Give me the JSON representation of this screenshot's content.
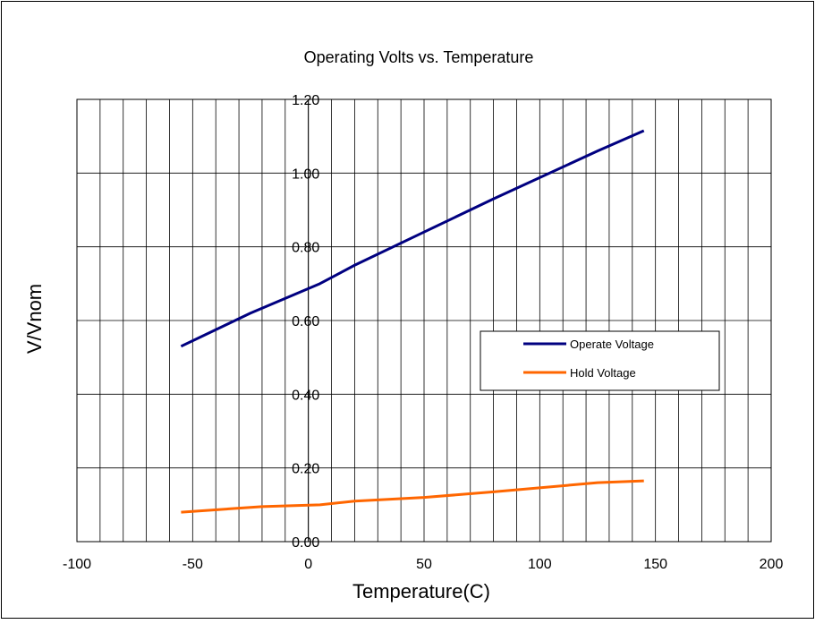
{
  "chart_data": {
    "type": "line",
    "title": "Operating Volts vs. Temperature",
    "xlabel": "Temperature(C)",
    "ylabel": "V/Vnom",
    "xlim": [
      -100,
      200
    ],
    "ylim": [
      0,
      1.2
    ],
    "x_ticks": [
      "-100",
      "-50",
      "0",
      "50",
      "100",
      "150",
      "200"
    ],
    "y_ticks": [
      "0.00",
      "0.20",
      "0.40",
      "0.60",
      "0.80",
      "1.00",
      "1.20"
    ],
    "grid": true,
    "legend_position": "right-center",
    "series": [
      {
        "name": "Operate Voltage",
        "color": "#000080",
        "x": [
          -55,
          -25,
          5,
          20,
          50,
          80,
          125,
          145
        ],
        "y": [
          0.53,
          0.62,
          0.7,
          0.75,
          0.84,
          0.93,
          1.06,
          1.115
        ]
      },
      {
        "name": "Hold Voltage",
        "color": "#ff6600",
        "x": [
          -55,
          -20,
          5,
          20,
          50,
          80,
          125,
          145
        ],
        "y": [
          0.08,
          0.095,
          0.1,
          0.11,
          0.12,
          0.135,
          0.16,
          0.165
        ]
      }
    ]
  }
}
